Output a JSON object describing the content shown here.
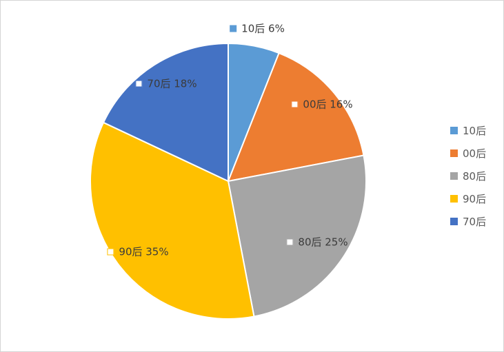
{
  "chart_data": {
    "type": "pie",
    "title": "",
    "label_format": "{label} {value}%",
    "slices": [
      {
        "label": "10后",
        "value": 6,
        "color": "#5B9BD5",
        "display": "10后 6%"
      },
      {
        "label": "00后",
        "value": 16,
        "color": "#ED7D31",
        "display": "00后 16%"
      },
      {
        "label": "80后",
        "value": 25,
        "color": "#A5A5A5",
        "display": "80后 25%"
      },
      {
        "label": "90后",
        "value": 35,
        "color": "#FFC000",
        "display": "90后 35%"
      },
      {
        "label": "70后",
        "value": 18,
        "color": "#4472C4",
        "display": "70后 18%"
      }
    ],
    "legend": {
      "position": "right",
      "items": [
        "10后",
        "00后",
        "80后",
        "90后",
        "70后"
      ]
    },
    "start_angle_deg": 0,
    "direction": "clockwise",
    "slice_border_color": "#ffffff"
  }
}
